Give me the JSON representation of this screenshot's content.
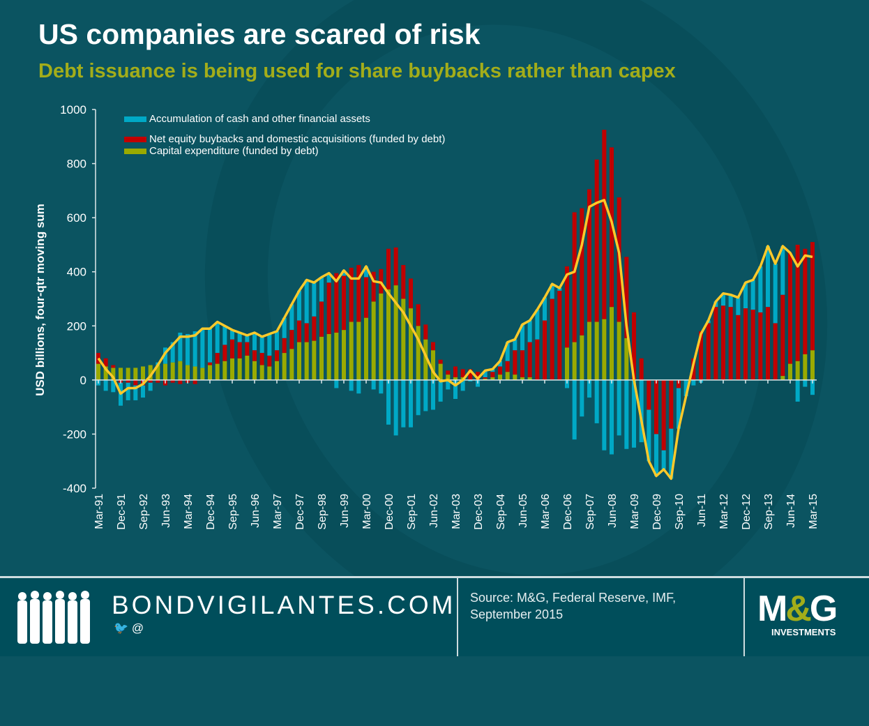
{
  "header": {
    "title": "US companies are scared of risk",
    "subtitle": "Debt issuance is being used for share buybacks rather than capex"
  },
  "chart_data": {
    "type": "bar",
    "stacked": true,
    "ylabel": "USD billions, four-qtr moving sum",
    "ylim": [
      -400,
      1000
    ],
    "yticks": [
      "1000",
      "800",
      "600",
      "400",
      "200",
      "0",
      "-200",
      "-400"
    ],
    "ytick_values": [
      1000,
      800,
      600,
      400,
      200,
      0,
      -200,
      -400
    ],
    "x_start": "Mar-91",
    "x_end": "Mar-15",
    "frequency": "quarterly",
    "xtick_labels": [
      "Mar-91",
      "Dec-91",
      "Sep-92",
      "Jun-93",
      "Mar-94",
      "Dec-94",
      "Sep-95",
      "Jun-96",
      "Mar-97",
      "Dec-97",
      "Sep-98",
      "Jun-99",
      "Mar-00",
      "Dec-00",
      "Sep-01",
      "Jun-02",
      "Mar-03",
      "Dec-03",
      "Sep-04",
      "Jun-05",
      "Mar-06",
      "Dec-06",
      "Sep-07",
      "Jun-08",
      "Mar-09",
      "Dec-09",
      "Sep-10",
      "Jun-11",
      "Mar-12",
      "Dec-12",
      "Sep-13",
      "Jun-14",
      "Mar-15"
    ],
    "legend_position": "top-left",
    "series": [
      {
        "name": "Accumulation of cash and other financial assets",
        "color": "#00a9c6",
        "values": [
          -20,
          -40,
          -45,
          -85,
          -65,
          -55,
          -45,
          -30,
          10,
          60,
          75,
          105,
          115,
          130,
          145,
          125,
          115,
          70,
          35,
          35,
          25,
          65,
          60,
          80,
          70,
          75,
          95,
          110,
          160,
          125,
          90,
          35,
          -30,
          20,
          -40,
          -50,
          40,
          -35,
          -50,
          -165,
          -205,
          -175,
          -175,
          -130,
          -115,
          -110,
          -80,
          -35,
          -70,
          -40,
          -5,
          -25,
          25,
          10,
          20,
          70,
          40,
          95,
          80,
          110,
          85,
          55,
          10,
          -30,
          -220,
          -135,
          -65,
          -160,
          -260,
          -275,
          -205,
          -255,
          -250,
          -230,
          -190,
          -155,
          -70,
          -185,
          -150,
          -60,
          -20,
          -10,
          10,
          20,
          45,
          45,
          65,
          95,
          110,
          170,
          225,
          220,
          180,
          0,
          -80,
          -25,
          -55
        ]
      },
      {
        "name": "Net equity buybacks and domestic acquisitions (funded by debt)",
        "color": "#c00000",
        "values": [
          40,
          30,
          10,
          -10,
          -10,
          -20,
          -20,
          -10,
          -10,
          -20,
          -10,
          -15,
          -10,
          -15,
          0,
          10,
          40,
          60,
          70,
          60,
          50,
          40,
          45,
          40,
          40,
          55,
          70,
          80,
          70,
          90,
          130,
          190,
          220,
          200,
          200,
          210,
          150,
          110,
          90,
          150,
          140,
          125,
          110,
          80,
          55,
          30,
          15,
          15,
          40,
          30,
          40,
          30,
          5,
          20,
          30,
          40,
          90,
          100,
          130,
          150,
          220,
          300,
          330,
          300,
          480,
          470,
          490,
          600,
          700,
          590,
          460,
          300,
          250,
          80,
          -110,
          -200,
          -260,
          -180,
          -30,
          0,
          80,
          180,
          210,
          270,
          275,
          270,
          240,
          265,
          260,
          250,
          270,
          210,
          300,
          410,
          430,
          390,
          400
        ]
      },
      {
        "name": "Capital expenditure (funded by debt)",
        "color": "#9aaa00",
        "values": [
          60,
          50,
          45,
          45,
          45,
          45,
          50,
          55,
          55,
          60,
          65,
          70,
          55,
          50,
          45,
          55,
          60,
          70,
          80,
          80,
          90,
          70,
          55,
          50,
          70,
          100,
          115,
          140,
          140,
          145,
          160,
          170,
          175,
          185,
          215,
          215,
          230,
          290,
          320,
          335,
          350,
          300,
          265,
          200,
          150,
          110,
          60,
          20,
          10,
          10,
          0,
          0,
          5,
          10,
          20,
          30,
          20,
          10,
          10,
          0,
          0,
          0,
          0,
          120,
          140,
          165,
          215,
          215,
          225,
          270,
          215,
          155,
          0,
          0,
          0,
          0,
          0,
          0,
          0,
          0,
          0,
          0,
          0,
          0,
          0,
          0,
          0,
          0,
          0,
          0,
          0,
          0,
          15,
          60,
          70,
          95,
          110
        ]
      }
    ],
    "line": {
      "color": "#ffc92a",
      "values": [
        80,
        40,
        10,
        -50,
        -30,
        -30,
        -15,
        15,
        55,
        100,
        130,
        160,
        160,
        165,
        190,
        190,
        215,
        200,
        185,
        175,
        165,
        175,
        160,
        170,
        180,
        230,
        280,
        330,
        370,
        360,
        380,
        395,
        365,
        405,
        375,
        375,
        420,
        365,
        360,
        320,
        285,
        250,
        200,
        150,
        90,
        30,
        -5,
        0,
        -20,
        0,
        35,
        5,
        35,
        40,
        70,
        140,
        150,
        205,
        220,
        260,
        305,
        355,
        340,
        390,
        400,
        500,
        640,
        655,
        665,
        585,
        470,
        200,
        0,
        -150,
        -300,
        -355,
        -330,
        -365,
        -180,
        -60,
        60,
        170,
        220,
        290,
        320,
        315,
        305,
        360,
        370,
        420,
        495,
        430,
        495,
        470,
        420,
        460,
        455
      ]
    }
  },
  "footer": {
    "site": "BONDVIGILANTES.COM",
    "social": "@",
    "twitter_icon": "twitter-bird",
    "source": "Source: M&G,  Federal Reserve, IMF, September 2015",
    "logo_text": "M&G",
    "logo_sub": "INVESTMENTS"
  }
}
